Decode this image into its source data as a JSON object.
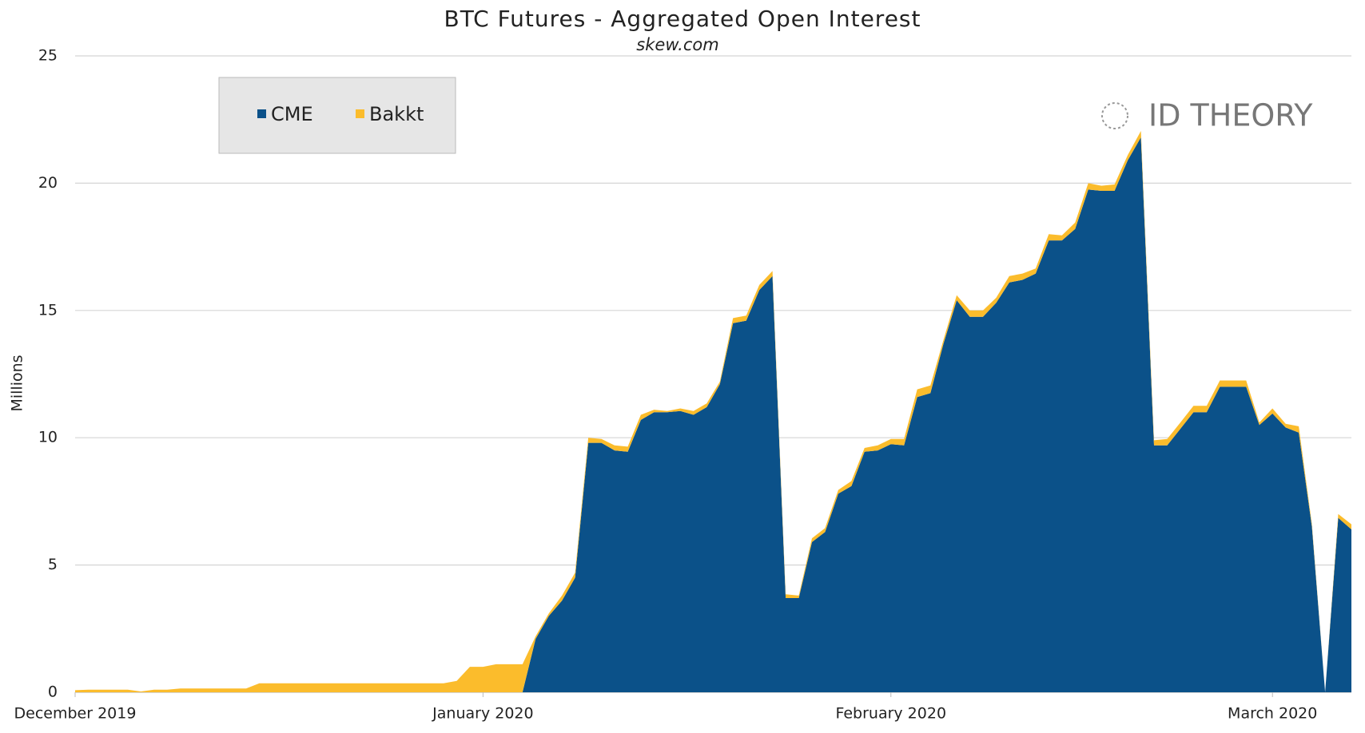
{
  "chart_data": {
    "type": "stacked_area",
    "title": "BTC Futures -  Aggregated Open Interest",
    "subtitle": "skew.com",
    "y_label": "Millions",
    "watermark": "ID THEORY",
    "categories": [
      "December 2019",
      null,
      null,
      null,
      null,
      null,
      null,
      null,
      null,
      null,
      null,
      null,
      null,
      null,
      null,
      null,
      null,
      null,
      null,
      null,
      null,
      null,
      null,
      null,
      null,
      null,
      null,
      null,
      null,
      null,
      null,
      "January 2020",
      null,
      null,
      null,
      null,
      null,
      null,
      null,
      null,
      null,
      null,
      null,
      null,
      null,
      null,
      null,
      null,
      null,
      null,
      null,
      null,
      null,
      null,
      null,
      null,
      null,
      null,
      null,
      null,
      null,
      null,
      "February 2020",
      null,
      null,
      null,
      null,
      null,
      null,
      null,
      null,
      null,
      null,
      null,
      null,
      null,
      null,
      null,
      null,
      null,
      null,
      null,
      null,
      null,
      null,
      null,
      null,
      null,
      null,
      null,
      null,
      "March 2020",
      null,
      null,
      null,
      null,
      null,
      null
    ],
    "series": [
      {
        "name": "CME",
        "color": "#0b5189",
        "values": [
          0,
          0,
          0,
          0,
          0,
          0,
          0,
          0,
          0,
          0,
          0,
          0,
          0,
          0,
          0,
          0,
          0,
          0,
          0,
          0,
          0,
          0,
          0,
          0,
          0,
          0,
          0,
          0,
          0,
          0,
          0,
          0,
          0,
          0,
          0,
          2.1,
          3.0,
          3.6,
          4.5,
          9.8,
          9.8,
          9.5,
          9.45,
          10.7,
          11.0,
          11.0,
          11.05,
          10.9,
          11.2,
          12.1,
          14.5,
          14.6,
          15.8,
          16.35,
          3.7,
          3.7,
          5.9,
          6.3,
          7.8,
          8.1,
          9.45,
          9.5,
          9.75,
          9.7,
          11.6,
          11.75,
          13.7,
          15.4,
          14.75,
          14.75,
          15.3,
          16.1,
          16.2,
          16.45,
          17.75,
          17.75,
          18.2,
          19.75,
          19.7,
          19.7,
          20.9,
          21.8,
          9.7,
          9.7,
          10.35,
          11.0,
          11.0,
          12.0,
          12.0,
          12.0,
          10.5,
          10.95,
          10.4,
          10.2,
          6.5,
          0,
          6.85,
          6.4
        ]
      },
      {
        "name": "Bakkt",
        "color": "#fbbc2c",
        "values": [
          0.08,
          0.1,
          0.1,
          0.1,
          0.1,
          0.03,
          0.1,
          0.1,
          0.15,
          0.15,
          0.15,
          0.15,
          0.15,
          0.15,
          0.35,
          0.35,
          0.35,
          0.35,
          0.35,
          0.35,
          0.35,
          0.35,
          0.35,
          0.35,
          0.35,
          0.35,
          0.35,
          0.35,
          0.35,
          0.45,
          1.0,
          1.0,
          1.1,
          1.1,
          1.1,
          0.1,
          0.1,
          0.2,
          0.2,
          0.2,
          0.15,
          0.2,
          0.2,
          0.2,
          0.1,
          0.05,
          0.1,
          0.15,
          0.15,
          0.1,
          0.2,
          0.2,
          0.2,
          0.2,
          0.15,
          0.1,
          0.15,
          0.15,
          0.15,
          0.2,
          0.15,
          0.2,
          0.2,
          0.25,
          0.3,
          0.3,
          0.15,
          0.2,
          0.25,
          0.25,
          0.2,
          0.25,
          0.25,
          0.2,
          0.25,
          0.2,
          0.25,
          0.25,
          0.2,
          0.25,
          0.2,
          0.25,
          0.2,
          0.25,
          0.25,
          0.25,
          0.25,
          0.25,
          0.25,
          0.25,
          0.1,
          0.2,
          0.15,
          0.25,
          0.1,
          0,
          0.15,
          0.2
        ]
      }
    ],
    "ylim": [
      0,
      25
    ],
    "yticks": [
      0,
      5,
      10,
      15,
      20,
      25
    ],
    "grid": true,
    "legend": "top-left"
  }
}
